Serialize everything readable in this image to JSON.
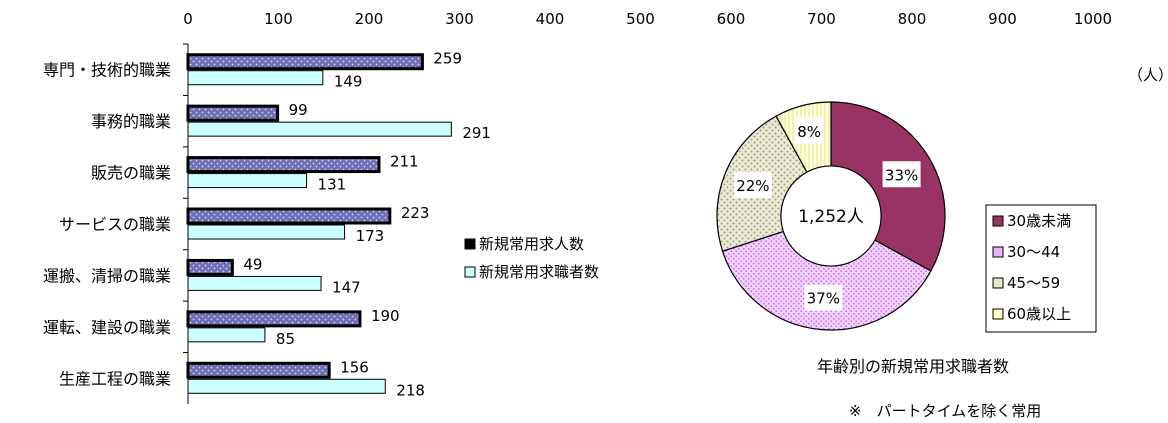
{
  "chart_data": [
    {
      "type": "bar",
      "orientation": "horizontal",
      "categories": [
        "専門・技術的職業",
        "事務的職業",
        "販売の職業",
        "サービスの職業",
        "運搬、清掃の職業",
        "運転、建設の職業",
        "生産工程の職業"
      ],
      "series": [
        {
          "name": "新規常用求人数",
          "values": [
            259,
            99,
            211,
            223,
            49,
            190,
            156
          ],
          "color": "#7b7bbd"
        },
        {
          "name": "新規常用求職者数",
          "values": [
            149,
            291,
            131,
            173,
            147,
            85,
            218
          ],
          "color": "#ccffff"
        }
      ],
      "xlim": [
        0,
        1000
      ],
      "xticks": [
        0,
        100,
        200,
        300,
        400,
        500,
        600,
        700,
        800,
        900,
        1000
      ],
      "unit": "（人）",
      "legend_position": "center-right"
    },
    {
      "type": "pie",
      "variant": "doughnut",
      "center_label": "1,252人",
      "slices": [
        {
          "label": "30歳未満",
          "value": 33,
          "display": "33%",
          "color": "#993366"
        },
        {
          "label": "30～44",
          "value": 37,
          "display": "37%",
          "color": "#e6b3ff"
        },
        {
          "label": "45～59",
          "value": 22,
          "display": "22%",
          "color": "#e8e8c8"
        },
        {
          "label": "60歳以上",
          "value": 8,
          "display": "8%",
          "color": "#ffffcc"
        }
      ],
      "title": "年齢別の新規常用求職者数",
      "note": "※　パートタイムを除く常用",
      "legend_position": "right"
    }
  ]
}
